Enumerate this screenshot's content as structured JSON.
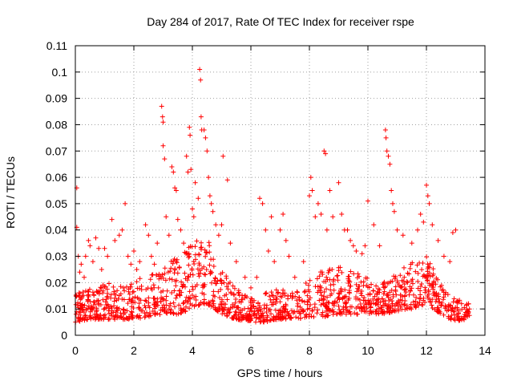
{
  "chart_data": {
    "type": "scatter",
    "title": "Day 284 of 2017, Rate Of TEC Index for receiver rspe",
    "xlabel": "GPS time / hours",
    "ylabel": "ROTI / TECUs",
    "xlim": [
      0,
      14
    ],
    "ylim": [
      0,
      0.11
    ],
    "grid": true,
    "marker": "+",
    "marker_color": "#ff0000",
    "x_ticks": [
      0,
      2,
      4,
      6,
      8,
      10,
      12,
      14
    ],
    "x_tick_labels": [
      "0",
      "2",
      "4",
      "6",
      "8",
      "10",
      "12",
      "14"
    ],
    "y_ticks": [
      0,
      0.01,
      0.02,
      0.03,
      0.04,
      0.05,
      0.06,
      0.07,
      0.08,
      0.09,
      0.1,
      0.11
    ],
    "y_tick_labels": [
      "0",
      "0.01",
      "0.02",
      "0.03",
      "0.04",
      "0.05",
      "0.06",
      "0.07",
      "0.08",
      "0.09",
      "0.1",
      "0.11"
    ],
    "series": [
      {
        "name": "ROTI",
        "points": [
          [
            0.05,
            0.056
          ],
          [
            0.05,
            0.041
          ],
          [
            0.1,
            0.03
          ],
          [
            0.15,
            0.024
          ],
          [
            0.2,
            0.027
          ],
          [
            0.3,
            0.022
          ],
          [
            0.35,
            0.03
          ],
          [
            0.45,
            0.036
          ],
          [
            0.5,
            0.034
          ],
          [
            0.6,
            0.028
          ],
          [
            0.7,
            0.037
          ],
          [
            0.8,
            0.033
          ],
          [
            0.9,
            0.025
          ],
          [
            1.0,
            0.033
          ],
          [
            1.1,
            0.03
          ],
          [
            1.25,
            0.044
          ],
          [
            1.35,
            0.036
          ],
          [
            1.5,
            0.038
          ],
          [
            1.6,
            0.04
          ],
          [
            1.7,
            0.05
          ],
          [
            1.8,
            0.03
          ],
          [
            1.9,
            0.027
          ],
          [
            2.0,
            0.032
          ],
          [
            2.1,
            0.025
          ],
          [
            2.2,
            0.028
          ],
          [
            2.4,
            0.042
          ],
          [
            2.5,
            0.038
          ],
          [
            2.6,
            0.03
          ],
          [
            2.7,
            0.027
          ],
          [
            2.8,
            0.035
          ],
          [
            2.95,
            0.087
          ],
          [
            2.98,
            0.083
          ],
          [
            3.0,
            0.081
          ],
          [
            3.0,
            0.072
          ],
          [
            3.05,
            0.067
          ],
          [
            3.1,
            0.045
          ],
          [
            3.2,
            0.038
          ],
          [
            3.3,
            0.064
          ],
          [
            3.35,
            0.062
          ],
          [
            3.4,
            0.056
          ],
          [
            3.45,
            0.055
          ],
          [
            3.5,
            0.044
          ],
          [
            3.6,
            0.04
          ],
          [
            3.7,
            0.035
          ],
          [
            3.8,
            0.068
          ],
          [
            3.85,
            0.062
          ],
          [
            3.9,
            0.079
          ],
          [
            3.92,
            0.076
          ],
          [
            3.95,
            0.063
          ],
          [
            4.0,
            0.048
          ],
          [
            4.05,
            0.045
          ],
          [
            4.1,
            0.058
          ],
          [
            4.2,
            0.052
          ],
          [
            4.25,
            0.101
          ],
          [
            4.28,
            0.097
          ],
          [
            4.3,
            0.083
          ],
          [
            4.32,
            0.078
          ],
          [
            4.4,
            0.078
          ],
          [
            4.45,
            0.075
          ],
          [
            4.5,
            0.07
          ],
          [
            4.55,
            0.06
          ],
          [
            4.6,
            0.053
          ],
          [
            4.65,
            0.05
          ],
          [
            4.7,
            0.047
          ],
          [
            4.8,
            0.042
          ],
          [
            4.9,
            0.038
          ],
          [
            5.0,
            0.042
          ],
          [
            5.05,
            0.068
          ],
          [
            5.2,
            0.059
          ],
          [
            5.3,
            0.035
          ],
          [
            5.5,
            0.028
          ],
          [
            5.8,
            0.022
          ],
          [
            6.0,
            0.018
          ],
          [
            6.2,
            0.022
          ],
          [
            6.3,
            0.052
          ],
          [
            6.4,
            0.05
          ],
          [
            6.5,
            0.04
          ],
          [
            6.6,
            0.032
          ],
          [
            6.7,
            0.045
          ],
          [
            6.8,
            0.028
          ],
          [
            7.0,
            0.04
          ],
          [
            7.1,
            0.046
          ],
          [
            7.2,
            0.036
          ],
          [
            7.3,
            0.03
          ],
          [
            7.5,
            0.022
          ],
          [
            7.8,
            0.028
          ],
          [
            8.0,
            0.053
          ],
          [
            8.05,
            0.06
          ],
          [
            8.1,
            0.055
          ],
          [
            8.2,
            0.045
          ],
          [
            8.3,
            0.05
          ],
          [
            8.4,
            0.046
          ],
          [
            8.5,
            0.07
          ],
          [
            8.55,
            0.069
          ],
          [
            8.6,
            0.04
          ],
          [
            8.7,
            0.055
          ],
          [
            8.8,
            0.045
          ],
          [
            9.0,
            0.058
          ],
          [
            9.1,
            0.046
          ],
          [
            9.2,
            0.04
          ],
          [
            9.3,
            0.04
          ],
          [
            9.4,
            0.036
          ],
          [
            9.5,
            0.034
          ],
          [
            9.6,
            0.032
          ],
          [
            9.8,
            0.031
          ],
          [
            9.9,
            0.034
          ],
          [
            10.0,
            0.051
          ],
          [
            10.2,
            0.042
          ],
          [
            10.4,
            0.034
          ],
          [
            10.6,
            0.078
          ],
          [
            10.62,
            0.075
          ],
          [
            10.65,
            0.07
          ],
          [
            10.7,
            0.068
          ],
          [
            10.75,
            0.065
          ],
          [
            10.8,
            0.055
          ],
          [
            10.85,
            0.05
          ],
          [
            10.9,
            0.047
          ],
          [
            11.0,
            0.04
          ],
          [
            11.2,
            0.038
          ],
          [
            11.5,
            0.035
          ],
          [
            11.7,
            0.04
          ],
          [
            11.8,
            0.046
          ],
          [
            11.9,
            0.043
          ],
          [
            12.0,
            0.057
          ],
          [
            12.05,
            0.053
          ],
          [
            12.1,
            0.05
          ],
          [
            12.2,
            0.042
          ],
          [
            12.4,
            0.036
          ],
          [
            12.6,
            0.03
          ],
          [
            12.8,
            0.028
          ],
          [
            12.9,
            0.039
          ],
          [
            13.0,
            0.04
          ],
          [
            13.2,
            0.012
          ],
          [
            13.4,
            0.009
          ]
        ],
        "dense_band": {
          "description": "dense background scatter",
          "x": [
            0.0,
            0.5,
            1.0,
            1.5,
            2.0,
            2.5,
            3.0,
            3.5,
            4.0,
            4.5,
            5.0,
            5.5,
            6.0,
            6.5,
            7.0,
            7.5,
            8.0,
            8.5,
            9.0,
            9.5,
            10.0,
            10.5,
            11.0,
            11.5,
            12.0,
            12.5,
            13.0,
            13.5
          ],
          "low": [
            0.005,
            0.006,
            0.006,
            0.006,
            0.006,
            0.007,
            0.008,
            0.008,
            0.01,
            0.012,
            0.008,
            0.006,
            0.005,
            0.005,
            0.006,
            0.006,
            0.007,
            0.007,
            0.008,
            0.008,
            0.008,
            0.008,
            0.009,
            0.01,
            0.012,
            0.008,
            0.005,
            0.006
          ],
          "high": [
            0.016,
            0.018,
            0.02,
            0.02,
            0.022,
            0.022,
            0.026,
            0.03,
            0.036,
            0.038,
            0.025,
            0.018,
            0.014,
            0.016,
            0.018,
            0.016,
            0.022,
            0.025,
            0.027,
            0.024,
            0.022,
            0.02,
            0.024,
            0.028,
            0.03,
            0.02,
            0.014,
            0.012
          ]
        }
      }
    ]
  }
}
